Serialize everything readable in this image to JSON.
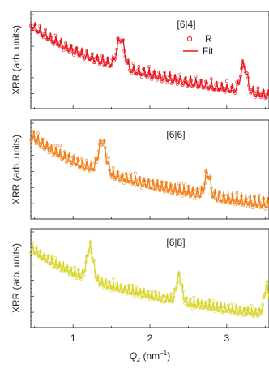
{
  "chart_data": [
    {
      "type": "scatter",
      "panel_label": "[6|4]",
      "ylabel": "XRR (arb. units)",
      "xlabel": "Q_z (nm⁻¹)",
      "xlim": [
        0.45,
        3.55
      ],
      "y_scale": "log",
      "legend": [
        {
          "name": "R",
          "marker": "open-circle"
        },
        {
          "name": "Fit",
          "marker": "line"
        }
      ],
      "legend_position": "top-right",
      "color": "#e8141c",
      "grid": false,
      "decay": 4.2,
      "period": 0.135,
      "amplitude": 0.55,
      "bragg_peaks": [
        {
          "q": 1.62,
          "height": 1.45,
          "width": 0.07
        },
        {
          "q": 3.22,
          "height": 1.35,
          "width": 0.06
        }
      ],
      "x_ticks": [
        1,
        2,
        3
      ]
    },
    {
      "type": "scatter",
      "panel_label": "[6|6]",
      "ylabel": "XRR (arb. units)",
      "xlabel": "Q_z (nm⁻¹)",
      "xlim": [
        0.45,
        3.55
      ],
      "y_scale": "log",
      "color": "#f07d14",
      "grid": false,
      "decay": 3.3,
      "period": 0.115,
      "amplitude": 0.5,
      "bragg_peaks": [
        {
          "q": 1.38,
          "height": 1.25,
          "width": 0.07
        },
        {
          "q": 2.75,
          "height": 0.9,
          "width": 0.05
        }
      ],
      "x_ticks": [
        1,
        2,
        3
      ]
    },
    {
      "type": "scatter",
      "panel_label": "[6|8]",
      "ylabel": "XRR (arb. units)",
      "xlabel": "Q_z (nm⁻¹)",
      "xlim": [
        0.45,
        3.55
      ],
      "y_scale": "log",
      "color": "#d9d52b",
      "grid": false,
      "decay": 3.6,
      "period": 0.1,
      "amplitude": 0.5,
      "bragg_peaks": [
        {
          "q": 1.22,
          "height": 1.45,
          "width": 0.06
        },
        {
          "q": 2.38,
          "height": 1.15,
          "width": 0.05
        },
        {
          "q": 3.52,
          "height": 1.3,
          "width": 0.05
        }
      ],
      "x_ticks": [
        1,
        2,
        3
      ]
    }
  ]
}
